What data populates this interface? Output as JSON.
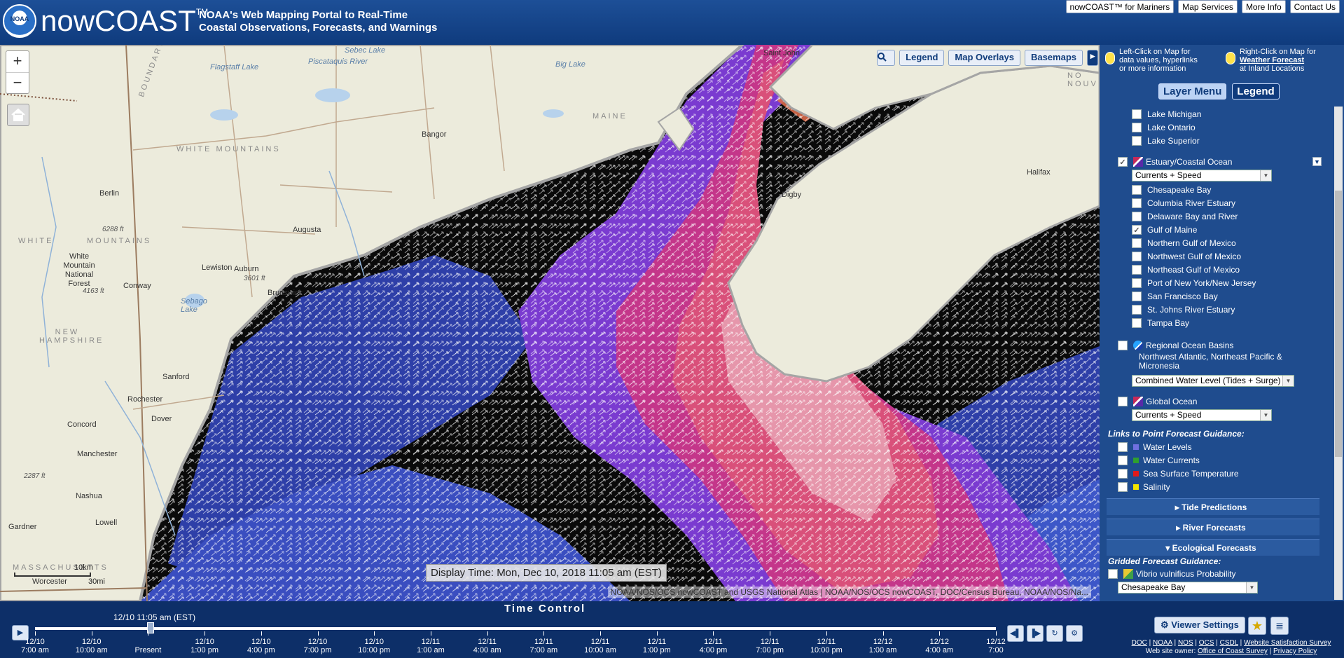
{
  "header": {
    "brand": "nowCOAST",
    "brand_tm": "TM",
    "logo_text": "NOAA",
    "tagline_1": "NOAA's Web Mapping Portal to Real-Time",
    "tagline_2": "Coastal Observations, Forecasts, and Warnings",
    "links": [
      "nowCOAST™ for Mariners",
      "Map Services",
      "More Info",
      "Contact Us"
    ]
  },
  "map": {
    "zoom_in": "+",
    "zoom_out": "−",
    "tools": {
      "legend": "Legend",
      "overlays": "Map Overlays",
      "basemaps": "Basemaps"
    },
    "labels": {
      "saint_john": "Saint John",
      "sebec_lake": "Sebec Lake",
      "piscataquis": "Piscataquis River",
      "flagstaff": "Flagstaff Lake",
      "big_lake": "Big Lake",
      "maine": "MAINE",
      "nova": "NO NOUV",
      "bangor": "Bangor",
      "boundary": "BOUNDARY",
      "white_mtn": "WHITE MOUNTAINS",
      "berlin": "Berlin",
      "elev_6288": "6288 ft",
      "white_mountain_nf": "White Mountain National Forest",
      "elev_4163": "4163 ft",
      "augusta": "Augusta",
      "lewiston": "Lewiston",
      "auburn": "Auburn",
      "elev_3601": "3601 ft",
      "brunswick": "Brunswick",
      "conway": "Conway",
      "sebago": "Sebago Lake",
      "new_hampshire": "NEW HAMPSHIRE",
      "sanford": "Sanford",
      "rochester": "Rochester",
      "dover": "Dover",
      "concord": "Concord",
      "manchester": "Manchester",
      "elev_2287": "2287 ft",
      "nashua": "Nashua",
      "gardner": "Gardner",
      "lowell": "Lowell",
      "massachusetts": "MASSACHUSETTS",
      "worcester": "Worcester",
      "halifax": "Halifax",
      "digby": "Digby",
      "ground_white": "WHITE",
      "mountains_two": "MOUNTAINS"
    },
    "display_time": "Display Time: Mon, Dec 10, 2018 11:05 am (EST)",
    "attribution": "NOAA/NOS/OCS nowCOAST and USGS National Atlas | NOAA/NOS/OCS nowCOAST, DOC/Census Bureau, NOAA/NOS/Na...",
    "scale_km": "10km",
    "scale_mi": "30mi"
  },
  "sidebar": {
    "hint_left": [
      "Left-Click on Map for",
      "data values, hyperlinks",
      "or more information"
    ],
    "hint_right_1": "Right-Click on Map for",
    "hint_right_link": "Weather Forecast",
    "hint_right_3": "at Inland Locations",
    "tab_layers": "Layer Menu",
    "tab_legend": "Legend",
    "great_lakes": [
      "Lake Michigan",
      "Lake Ontario",
      "Lake Superior"
    ],
    "estuary": {
      "label": "Estuary/Coastal Ocean",
      "select": "Currents + Speed",
      "items": [
        {
          "label": "Chesapeake Bay",
          "checked": false
        },
        {
          "label": "Columbia River Estuary",
          "checked": false
        },
        {
          "label": "Delaware Bay and River",
          "checked": false
        },
        {
          "label": "Gulf of Maine",
          "checked": true
        },
        {
          "label": "Northern Gulf of Mexico",
          "checked": false
        },
        {
          "label": "Northwest Gulf of Mexico",
          "checked": false
        },
        {
          "label": "Northeast Gulf of Mexico",
          "checked": false
        },
        {
          "label": "Port of New York/New Jersey",
          "checked": false
        },
        {
          "label": "San Francisco Bay",
          "checked": false
        },
        {
          "label": "St. Johns River Estuary",
          "checked": false
        },
        {
          "label": "Tampa Bay",
          "checked": false
        }
      ]
    },
    "regional": {
      "label": "Regional Ocean Basins",
      "sub_1": "Northwest Atlantic, Northeast Pacific &",
      "sub_2": "Micronesia",
      "select": "Combined Water Level (Tides + Surge)"
    },
    "global": {
      "label": "Global Ocean",
      "select": "Currents + Speed"
    },
    "point_head": "Links to Point Forecast Guidance:",
    "point_items": [
      {
        "label": "Water Levels",
        "color": "#6f6fe0"
      },
      {
        "label": "Water Currents",
        "color": "#2fa02f"
      },
      {
        "label": "Sea Surface Temperature",
        "color": "#e01a1a"
      },
      {
        "label": "Salinity",
        "color": "#f3e600"
      }
    ],
    "tide_predictions": "Tide Predictions",
    "river_forecasts": "River Forecasts",
    "ecological": "Ecological Forecasts",
    "gridded_head": "Gridded Forecast Guidance:",
    "vibrio": "Vibrio vulnificus Probability",
    "vibrio_select": "Chesapeake Bay"
  },
  "timebar": {
    "title": "Time Control",
    "current": "12/10 11:05 am (EST)",
    "position": 0.12,
    "ticks": [
      [
        "12/10",
        "7:00 am"
      ],
      [
        "12/10",
        "10:00 am"
      ],
      [
        "",
        "Present"
      ],
      [
        "12/10",
        "1:00 pm"
      ],
      [
        "12/10",
        "4:00 pm"
      ],
      [
        "12/10",
        "7:00 pm"
      ],
      [
        "12/10",
        "10:00 pm"
      ],
      [
        "12/11",
        "1:00 am"
      ],
      [
        "12/11",
        "4:00 am"
      ],
      [
        "12/11",
        "7:00 am"
      ],
      [
        "12/11",
        "10:00 am"
      ],
      [
        "12/11",
        "1:00 pm"
      ],
      [
        "12/11",
        "4:00 pm"
      ],
      [
        "12/11",
        "7:00 pm"
      ],
      [
        "12/11",
        "10:00 pm"
      ],
      [
        "12/12",
        "1:00 am"
      ],
      [
        "12/12",
        "4:00 am"
      ],
      [
        "12/12",
        "7:00"
      ]
    ],
    "viewer_settings": "Viewer Settings",
    "footer_links": [
      "DOC",
      "NOAA",
      "NOS",
      "OCS",
      "CSDL",
      "Website Satisfaction Survey"
    ],
    "owner_prefix": "Web site owner:",
    "owner_links": [
      "Office of Coast Survey",
      "Privacy Policy"
    ]
  }
}
